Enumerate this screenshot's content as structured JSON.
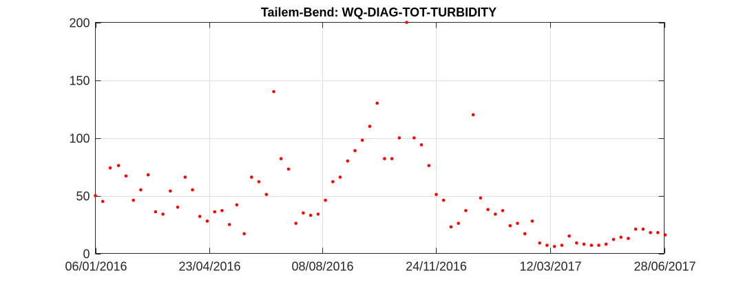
{
  "chart_data": {
    "type": "scatter",
    "title": "Tailem-Bend: WQ-DIAG-TOT-TURBIDITY",
    "xlabel": "",
    "ylabel": "",
    "x_range": [
      "2016-01-06",
      "2017-06-28"
    ],
    "ylim": [
      0,
      200
    ],
    "yticks": [
      0,
      50,
      100,
      150,
      200
    ],
    "xticks": [
      "2016-01-06",
      "2016-04-23",
      "2016-08-08",
      "2016-11-24",
      "2017-03-12",
      "2017-06-28"
    ],
    "xtick_labels": [
      "06/01/2016",
      "23/04/2016",
      "08/08/2016",
      "24/11/2016",
      "12/03/2017",
      "28/06/2017"
    ],
    "grid": true,
    "marker_color": "#ff0000",
    "points": [
      [
        "2016-01-06",
        50
      ],
      [
        "2016-01-13",
        45
      ],
      [
        "2016-01-20",
        74
      ],
      [
        "2016-01-28",
        76
      ],
      [
        "2016-02-04",
        67
      ],
      [
        "2016-02-11",
        46
      ],
      [
        "2016-02-18",
        55
      ],
      [
        "2016-02-25",
        68
      ],
      [
        "2016-03-03",
        36
      ],
      [
        "2016-03-10",
        34
      ],
      [
        "2016-03-17",
        54
      ],
      [
        "2016-03-24",
        40
      ],
      [
        "2016-03-31",
        66
      ],
      [
        "2016-04-07",
        55
      ],
      [
        "2016-04-14",
        32
      ],
      [
        "2016-04-21",
        28
      ],
      [
        "2016-04-28",
        36
      ],
      [
        "2016-05-05",
        37
      ],
      [
        "2016-05-12",
        25
      ],
      [
        "2016-05-19",
        42
      ],
      [
        "2016-05-26",
        17
      ],
      [
        "2016-06-02",
        66
      ],
      [
        "2016-06-09",
        62
      ],
      [
        "2016-06-16",
        51
      ],
      [
        "2016-06-23",
        140
      ],
      [
        "2016-06-30",
        82
      ],
      [
        "2016-07-07",
        73
      ],
      [
        "2016-07-14",
        26
      ],
      [
        "2016-07-21",
        35
      ],
      [
        "2016-07-28",
        33
      ],
      [
        "2016-08-04",
        34
      ],
      [
        "2016-08-11",
        46
      ],
      [
        "2016-08-18",
        62
      ],
      [
        "2016-08-25",
        66
      ],
      [
        "2016-09-01",
        80
      ],
      [
        "2016-09-08",
        89
      ],
      [
        "2016-09-15",
        98
      ],
      [
        "2016-09-22",
        110
      ],
      [
        "2016-09-29",
        130
      ],
      [
        "2016-10-06",
        82
      ],
      [
        "2016-10-13",
        82
      ],
      [
        "2016-10-20",
        100
      ],
      [
        "2016-10-27",
        200
      ],
      [
        "2016-11-03",
        100
      ],
      [
        "2016-11-10",
        94
      ],
      [
        "2016-11-17",
        76
      ],
      [
        "2016-11-24",
        51
      ],
      [
        "2016-12-01",
        46
      ],
      [
        "2016-12-08",
        23
      ],
      [
        "2016-12-15",
        26
      ],
      [
        "2016-12-22",
        37
      ],
      [
        "2016-12-29",
        120
      ],
      [
        "2017-01-05",
        48
      ],
      [
        "2017-01-12",
        38
      ],
      [
        "2017-01-19",
        34
      ],
      [
        "2017-01-26",
        37
      ],
      [
        "2017-02-02",
        24
      ],
      [
        "2017-02-09",
        26
      ],
      [
        "2017-02-16",
        17
      ],
      [
        "2017-02-23",
        28
      ],
      [
        "2017-03-02",
        9
      ],
      [
        "2017-03-09",
        7
      ],
      [
        "2017-03-16",
        6
      ],
      [
        "2017-03-23",
        7
      ],
      [
        "2017-03-30",
        15
      ],
      [
        "2017-04-06",
        9
      ],
      [
        "2017-04-13",
        8
      ],
      [
        "2017-04-20",
        7
      ],
      [
        "2017-04-27",
        7
      ],
      [
        "2017-05-04",
        8
      ],
      [
        "2017-05-11",
        12
      ],
      [
        "2017-05-18",
        14
      ],
      [
        "2017-05-25",
        13
      ],
      [
        "2017-06-01",
        21
      ],
      [
        "2017-06-08",
        21
      ],
      [
        "2017-06-15",
        18
      ],
      [
        "2017-06-22",
        18
      ],
      [
        "2017-06-29",
        16
      ]
    ]
  }
}
